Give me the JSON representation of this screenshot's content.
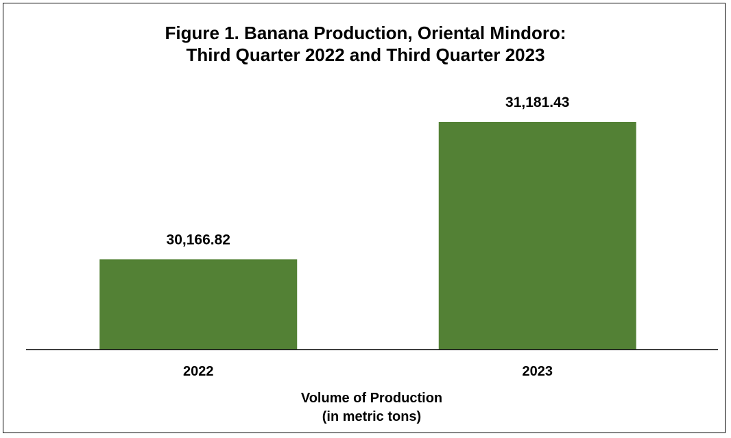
{
  "chart_data": {
    "type": "bar",
    "title_lines": [
      "Figure 1. Banana Production, Oriental Mindoro:",
      "Third Quarter 2022 and Third Quarter 2023"
    ],
    "categories": [
      "2022",
      "2023"
    ],
    "values": [
      30166.82,
      31181.43
    ],
    "data_labels": [
      "30,166.82",
      "31,181.43"
    ],
    "xlabel_lines": [
      "Volume of Production",
      "(in metric tons)"
    ],
    "ylabel": "",
    "ylim": [
      29500,
      31500
    ],
    "grid": false,
    "legend": "none",
    "colors": {
      "bar": "#538135",
      "axis": "#000000",
      "text": "#000000"
    }
  }
}
